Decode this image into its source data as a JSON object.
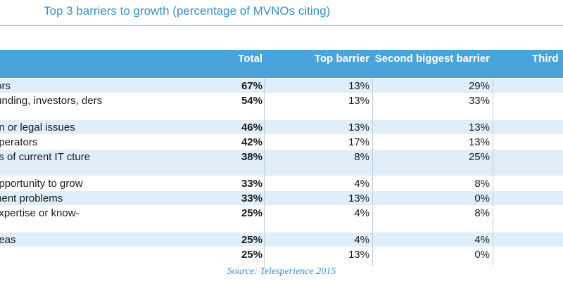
{
  "title": "Top 3 barriers to growth (percentage of MVNOs citing)",
  "table": {
    "headers": {
      "name": "",
      "total": "Total",
      "top": "Top barrier",
      "second": "Second biggest barrier",
      "third": "Third"
    },
    "rows": [
      {
        "name": "tors",
        "total": "67%",
        "top": "13%",
        "second": "29%",
        "third": ""
      },
      {
        "name": "funding, investors, ders",
        "total": "54%",
        "top": "13%",
        "second": "33%",
        "third": ""
      },
      {
        "name": "on or legal issues",
        "total": "46%",
        "top": "13%",
        "second": "13%",
        "third": ""
      },
      {
        "name": "operators",
        "total": "42%",
        "top": "17%",
        "second": "13%",
        "third": ""
      },
      {
        "name": "ns of current IT cture",
        "total": "38%",
        "top": "8%",
        "second": "25%",
        "third": ""
      },
      {
        "name": "opportunity to grow",
        "total": "33%",
        "top": "4%",
        "second": "8%",
        "third": ""
      },
      {
        "name": "ment problems",
        "total": "33%",
        "top": "13%",
        "second": "0%",
        "third": ""
      },
      {
        "name": "expertise or know-",
        "total": "25%",
        "top": "4%",
        "second": "8%",
        "third": ""
      },
      {
        "name": "deas",
        "total": "25%",
        "top": "4%",
        "second": "4%",
        "third": ""
      },
      {
        "name": "",
        "total": "25%",
        "top": "13%",
        "second": "0%",
        "third": ""
      }
    ]
  },
  "source": "Source: Telesperience 2015"
}
